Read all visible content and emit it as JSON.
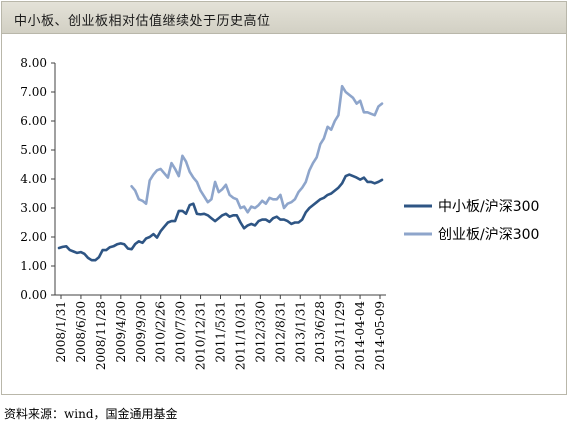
{
  "header": {
    "title": "中小板、创业板相对估值继续处于历史高位"
  },
  "footer": {
    "source": "资料来源：wind，国金通用基金"
  },
  "colors": {
    "series1": "#2e5584",
    "series2": "#8ea5cb",
    "title_bar": "#d8d6ca",
    "axis": "#404040"
  },
  "chart_data": {
    "type": "line",
    "title": "",
    "xlabel": "",
    "ylabel": "",
    "ylim": [
      0,
      8
    ],
    "yticks": [
      "0.00",
      "1.00",
      "2.00",
      "3.00",
      "4.00",
      "5.00",
      "6.00",
      "7.00",
      "8.00"
    ],
    "grid": false,
    "legend_position": "right",
    "x_tick_labels": [
      "2008/1/31",
      "2008/6/30",
      "2008/11/28",
      "2009/4/30",
      "2009/9/30",
      "2010/2/26",
      "2010/7/30",
      "2010/12/31",
      "2011/5/31",
      "2011/10/31",
      "2012/3/30",
      "2012/8/31",
      "2013/1/31",
      "2013/6/28",
      "2013/11/29",
      "2014-04-04",
      "2014-05-09"
    ],
    "series": [
      {
        "name": "中小板/沪深300",
        "start_index": 0,
        "values": [
          1.62,
          1.66,
          1.68,
          1.55,
          1.5,
          1.45,
          1.48,
          1.42,
          1.28,
          1.2,
          1.2,
          1.3,
          1.55,
          1.55,
          1.65,
          1.68,
          1.75,
          1.78,
          1.75,
          1.6,
          1.58,
          1.76,
          1.85,
          1.8,
          1.95,
          2.0,
          2.1,
          1.98,
          2.2,
          2.35,
          2.5,
          2.55,
          2.55,
          2.9,
          2.9,
          2.8,
          3.1,
          3.15,
          2.8,
          2.78,
          2.8,
          2.75,
          2.65,
          2.55,
          2.65,
          2.75,
          2.8,
          2.7,
          2.75,
          2.75,
          2.5,
          2.3,
          2.4,
          2.45,
          2.4,
          2.55,
          2.6,
          2.6,
          2.52,
          2.65,
          2.7,
          2.6,
          2.6,
          2.55,
          2.45,
          2.5,
          2.5,
          2.6,
          2.85,
          3.0,
          3.1,
          3.2,
          3.3,
          3.35,
          3.45,
          3.5,
          3.6,
          3.7,
          3.85,
          4.1,
          4.15,
          4.1,
          4.05,
          3.98,
          4.05,
          3.9,
          3.9,
          3.85,
          3.9,
          3.97
        ]
      },
      {
        "name": "创业板/沪深300",
        "start_index": 20,
        "values": [
          3.75,
          3.6,
          3.3,
          3.25,
          3.15,
          3.95,
          4.15,
          4.3,
          4.35,
          4.2,
          4.05,
          4.55,
          4.35,
          4.1,
          4.8,
          4.6,
          4.25,
          4.05,
          3.9,
          3.6,
          3.4,
          3.2,
          3.3,
          3.9,
          3.55,
          3.65,
          3.8,
          3.45,
          3.35,
          3.3,
          3.0,
          3.05,
          2.85,
          3.05,
          3.0,
          3.1,
          3.25,
          3.15,
          3.35,
          3.3,
          3.3,
          3.45,
          3.0,
          3.15,
          3.2,
          3.3,
          3.55,
          3.7,
          3.9,
          4.3,
          4.55,
          4.75,
          5.2,
          5.4,
          5.8,
          5.7,
          6.0,
          6.2,
          7.2,
          7.0,
          6.9,
          6.8,
          6.6,
          6.7,
          6.3,
          6.3,
          6.25,
          6.2,
          6.5,
          6.6
        ]
      }
    ]
  }
}
